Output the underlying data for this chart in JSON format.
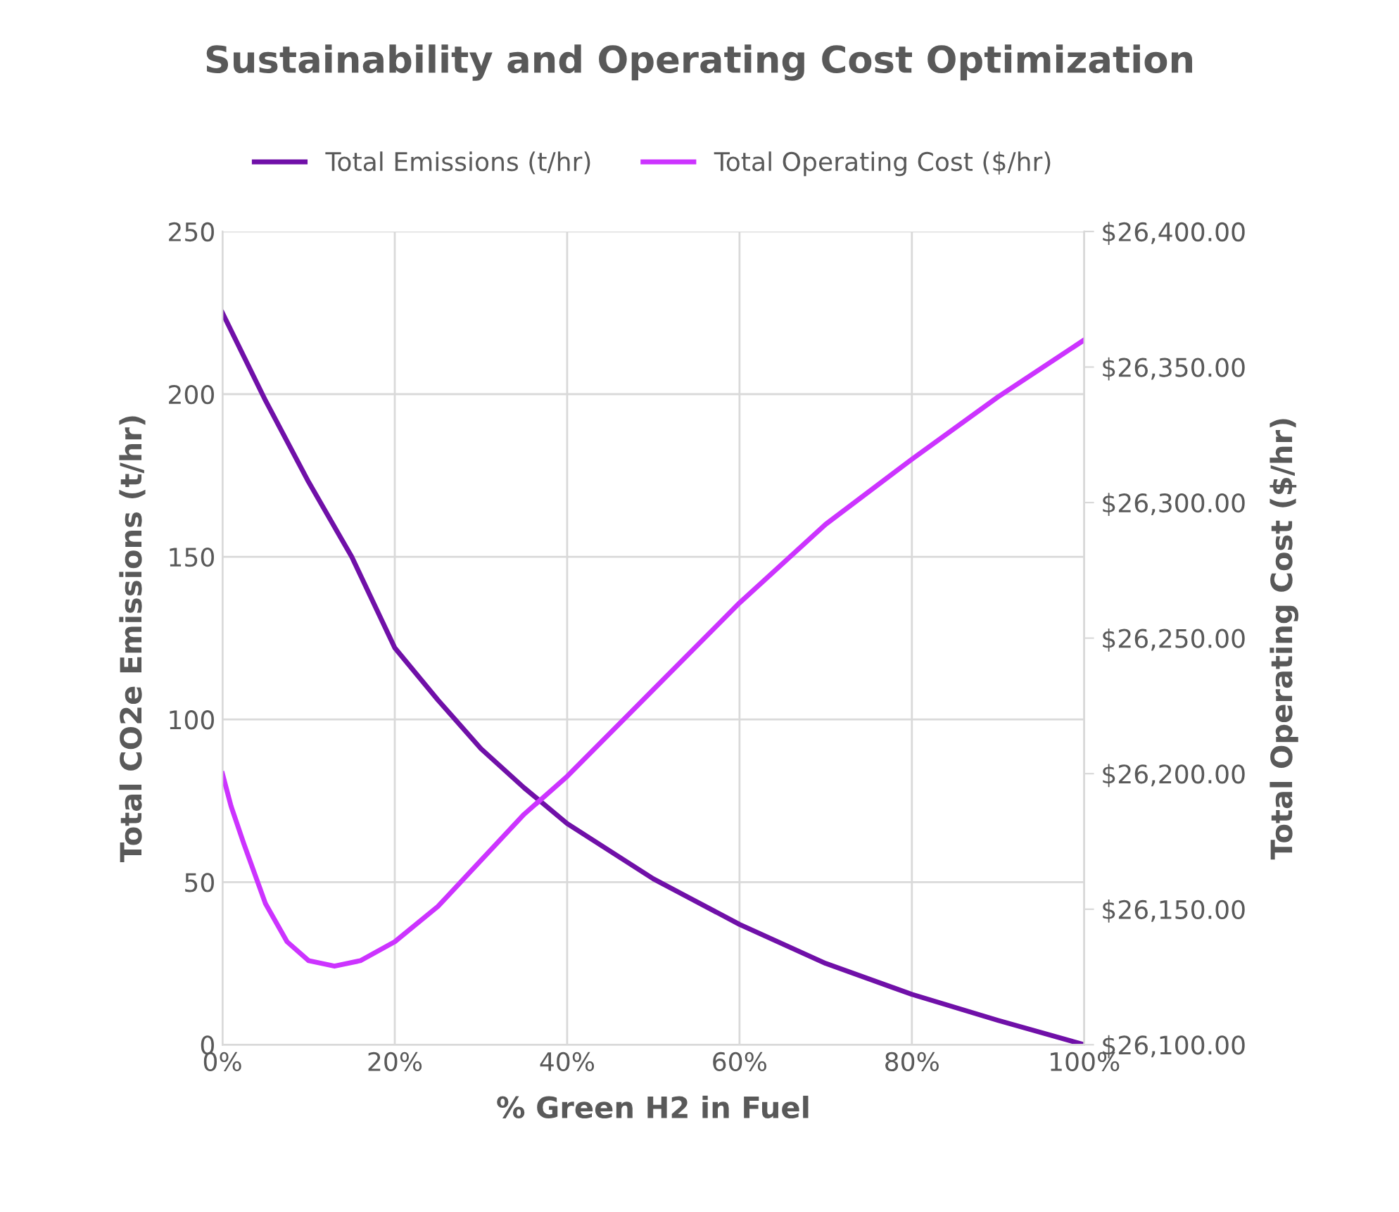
{
  "chart_data": {
    "type": "line",
    "title": "Sustainability and Operating Cost Optimization",
    "xlabel": "% Green H2 in Fuel",
    "ylabel": "Total CO2e Emissions (t/hr)",
    "y2label": "Total Operating Cost ($/hr)",
    "series": [
      {
        "name": "Total Emissions (t/hr)",
        "color": "#7010a8",
        "x": [
          0,
          5,
          10,
          15,
          20,
          25,
          30,
          35,
          40,
          50,
          60,
          70,
          80,
          90,
          100
        ],
        "values": [
          225,
          198,
          173,
          150,
          122,
          106,
          91,
          79,
          68,
          51,
          37,
          25,
          15.5,
          7.5,
          0
        ]
      },
      {
        "name": "Total Operating Cost ($/hr)",
        "color": "#cc33ff",
        "axis": "y2",
        "x": [
          0,
          1,
          2.5,
          5,
          7.5,
          10,
          13,
          16,
          20,
          25,
          30,
          35,
          40,
          50,
          60,
          70,
          80,
          90,
          100
        ],
        "values": [
          26200,
          26188,
          26174,
          26152,
          26138,
          26131,
          26129,
          26131,
          26138,
          26151,
          26168,
          26185,
          26199,
          26231,
          26263,
          26292,
          26316,
          26339,
          26360
        ]
      }
    ],
    "xlim": [
      0,
      100
    ],
    "xticks": [
      {
        "value": 0,
        "label": "0%"
      },
      {
        "value": 20,
        "label": "20%"
      },
      {
        "value": 40,
        "label": "40%"
      },
      {
        "value": 60,
        "label": "60%"
      },
      {
        "value": 80,
        "label": "80%"
      },
      {
        "value": 100,
        "label": "100%"
      }
    ],
    "ylim": [
      0,
      250
    ],
    "yticks": [
      0,
      50,
      100,
      150,
      200,
      250
    ],
    "y2lim": [
      26100,
      26400
    ],
    "y2ticks": [
      {
        "value": 26100,
        "label": "$26,100.00"
      },
      {
        "value": 26150,
        "label": "$26,150.00"
      },
      {
        "value": 26200,
        "label": "$26,200.00"
      },
      {
        "value": 26250,
        "label": "$26,250.00"
      },
      {
        "value": 26300,
        "label": "$26,300.00"
      },
      {
        "value": 26350,
        "label": "$26,350.00"
      },
      {
        "value": 26400,
        "label": "$26,400.00"
      }
    ],
    "grid": true,
    "legend": "top",
    "marker": "none",
    "line_style": "solid"
  }
}
